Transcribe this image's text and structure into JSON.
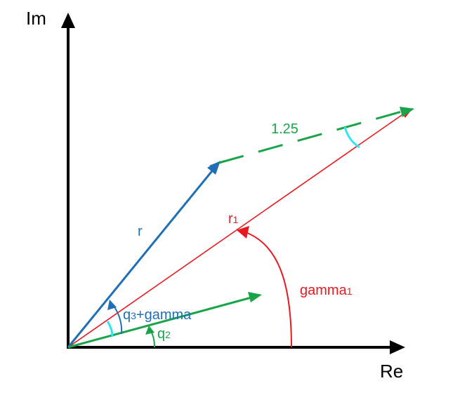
{
  "axes": {
    "x_label": "Re",
    "y_label": "Im"
  },
  "labels": {
    "r": "r",
    "r1_main": "r",
    "r1_sub": "1",
    "dashed": "1.25",
    "gamma1_main": "gamma",
    "gamma1_sub": "1",
    "q3_main": "q",
    "q3_sub": "3",
    "q3_rest": "+gamma",
    "q2_main": "q",
    "q2_sub": "2"
  },
  "colors": {
    "axis": "#000000",
    "blue": "#1f6fb4",
    "red": "#e8191f",
    "green": "#1aa44a",
    "cyan": "#2ee6f0"
  }
}
